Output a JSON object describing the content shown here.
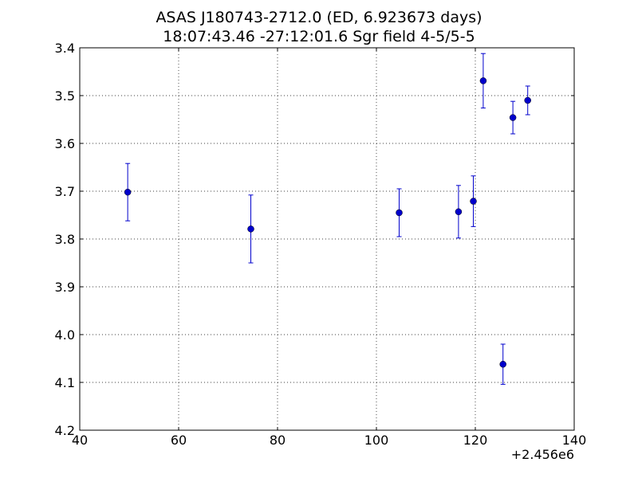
{
  "chart_data": {
    "type": "scatter",
    "title_line1": "ASAS J180743-2712.0 (ED, 6.923673 days)",
    "title_line2": "18:07:43.46 -27:12:01.6 Sgr field 4-5/5-5",
    "xlabel": "",
    "ylabel": "",
    "x_offset_label": "+2.456e6",
    "xlim": [
      40,
      140
    ],
    "ylim": [
      3.4,
      4.2
    ],
    "y_inverted": true,
    "grid": true,
    "x_ticks": [
      "40",
      "60",
      "80",
      "100",
      "120",
      "140"
    ],
    "y_ticks": [
      "3.4",
      "3.5",
      "3.6",
      "3.7",
      "3.8",
      "3.9",
      "4.0",
      "4.1",
      "4.2"
    ],
    "marker_color": "#0000cc",
    "points": [
      {
        "x": 49.7,
        "y": 3.702,
        "err": 0.06
      },
      {
        "x": 74.6,
        "y": 3.779,
        "err": 0.071
      },
      {
        "x": 104.6,
        "y": 3.745,
        "err": 0.05
      },
      {
        "x": 116.6,
        "y": 3.743,
        "err": 0.055
      },
      {
        "x": 119.6,
        "y": 3.721,
        "err": 0.053
      },
      {
        "x": 121.6,
        "y": 3.469,
        "err": 0.057
      },
      {
        "x": 125.6,
        "y": 4.062,
        "err": 0.042
      },
      {
        "x": 127.6,
        "y": 3.546,
        "err": 0.034
      },
      {
        "x": 130.6,
        "y": 3.51,
        "err": 0.03
      }
    ]
  }
}
